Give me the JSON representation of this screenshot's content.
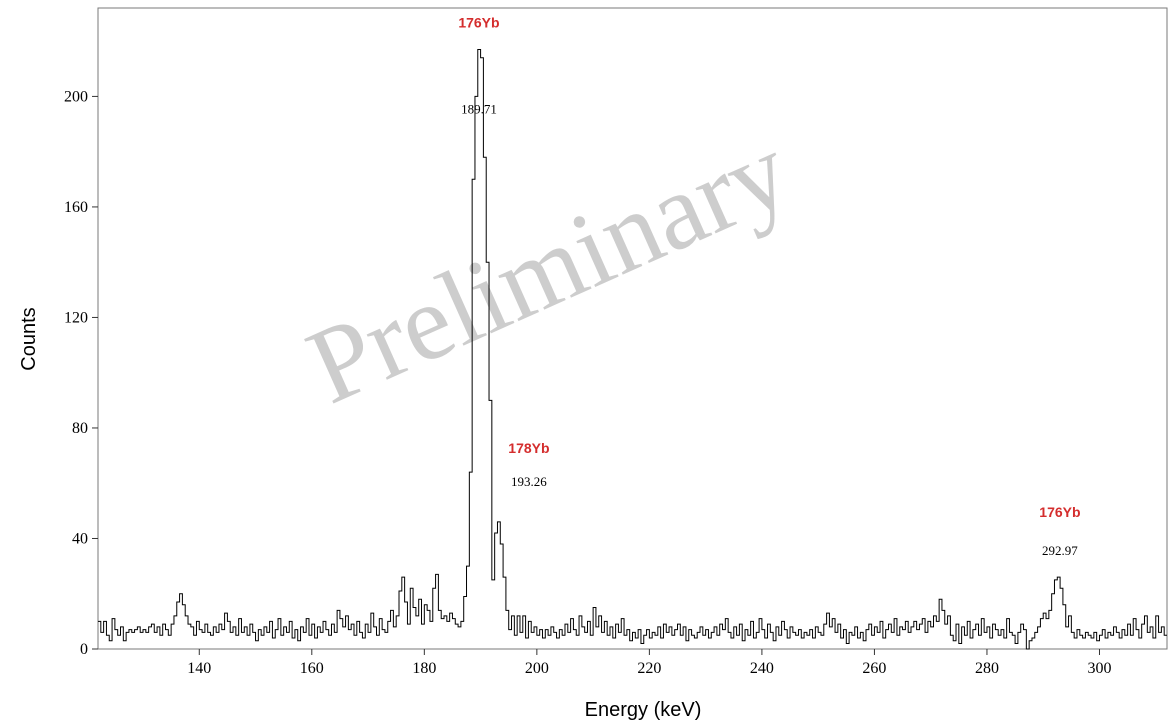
{
  "chart_data": {
    "type": "step-line",
    "title": "",
    "xlabel": "Energy (keV)",
    "ylabel": "Counts",
    "xlim": [
      122,
      312
    ],
    "ylim": [
      0,
      232
    ],
    "x_ticks": [
      140,
      160,
      180,
      200,
      220,
      240,
      260,
      280,
      300
    ],
    "y_ticks": [
      0,
      40,
      80,
      120,
      160,
      200
    ],
    "grid": false,
    "bin_width_keV": 0.5,
    "spectrum": [
      [
        122,
        10
      ],
      [
        122.5,
        6
      ],
      [
        123,
        10
      ],
      [
        123.5,
        5
      ],
      [
        124,
        3
      ],
      [
        124.5,
        11
      ],
      [
        125,
        7
      ],
      [
        125.5,
        5
      ],
      [
        126,
        8
      ],
      [
        126.5,
        3
      ],
      [
        127,
        6
      ],
      [
        127.5,
        7
      ],
      [
        128,
        6
      ],
      [
        128.5,
        7
      ],
      [
        129,
        8
      ],
      [
        129.5,
        6
      ],
      [
        130,
        7
      ],
      [
        130.5,
        6
      ],
      [
        131,
        8
      ],
      [
        131.5,
        9
      ],
      [
        132,
        6
      ],
      [
        132.5,
        8
      ],
      [
        133,
        5
      ],
      [
        133.5,
        9
      ],
      [
        134,
        7
      ],
      [
        134.5,
        5
      ],
      [
        135,
        9
      ],
      [
        135.5,
        12
      ],
      [
        136,
        17
      ],
      [
        136.5,
        20
      ],
      [
        137,
        16
      ],
      [
        137.5,
        12
      ],
      [
        138,
        9
      ],
      [
        138.5,
        8
      ],
      [
        139,
        5
      ],
      [
        139.5,
        10
      ],
      [
        140,
        7
      ],
      [
        140.5,
        6
      ],
      [
        141,
        9
      ],
      [
        141.5,
        6
      ],
      [
        142,
        5
      ],
      [
        142.5,
        8
      ],
      [
        143,
        6
      ],
      [
        143.5,
        9
      ],
      [
        144,
        7
      ],
      [
        144.5,
        13
      ],
      [
        145,
        10
      ],
      [
        145.5,
        6
      ],
      [
        146,
        8
      ],
      [
        146.5,
        5
      ],
      [
        147,
        11
      ],
      [
        147.5,
        6
      ],
      [
        148,
        8
      ],
      [
        148.5,
        5
      ],
      [
        149,
        9
      ],
      [
        149.5,
        6
      ],
      [
        150,
        3
      ],
      [
        150.5,
        7
      ],
      [
        151,
        5
      ],
      [
        151.5,
        8
      ],
      [
        152,
        6
      ],
      [
        152.5,
        10
      ],
      [
        153,
        4
      ],
      [
        153.5,
        7
      ],
      [
        154,
        11
      ],
      [
        154.5,
        5
      ],
      [
        155,
        8
      ],
      [
        155.5,
        6
      ],
      [
        156,
        10
      ],
      [
        156.5,
        4
      ],
      [
        157,
        7
      ],
      [
        157.5,
        3
      ],
      [
        158,
        8
      ],
      [
        158.5,
        6
      ],
      [
        159,
        11
      ],
      [
        159.5,
        5
      ],
      [
        160,
        9
      ],
      [
        160.5,
        4
      ],
      [
        161,
        8
      ],
      [
        161.5,
        6
      ],
      [
        162,
        10
      ],
      [
        162.5,
        7
      ],
      [
        163,
        5
      ],
      [
        163.5,
        9
      ],
      [
        164,
        6
      ],
      [
        164.5,
        14
      ],
      [
        165,
        11
      ],
      [
        165.5,
        8
      ],
      [
        166,
        12
      ],
      [
        166.5,
        7
      ],
      [
        167,
        9
      ],
      [
        167.5,
        5
      ],
      [
        168,
        10
      ],
      [
        168.5,
        6
      ],
      [
        169,
        4
      ],
      [
        169.5,
        9
      ],
      [
        170,
        6
      ],
      [
        170.5,
        13
      ],
      [
        171,
        8
      ],
      [
        171.5,
        5
      ],
      [
        172,
        11
      ],
      [
        172.5,
        7
      ],
      [
        173,
        6
      ],
      [
        173.5,
        10
      ],
      [
        174,
        14
      ],
      [
        174.5,
        8
      ],
      [
        175,
        12
      ],
      [
        175.5,
        21
      ],
      [
        176,
        26
      ],
      [
        176.5,
        17
      ],
      [
        177,
        9
      ],
      [
        177.5,
        22
      ],
      [
        178,
        15
      ],
      [
        178.5,
        12
      ],
      [
        179,
        18
      ],
      [
        179.5,
        9
      ],
      [
        180,
        16
      ],
      [
        180.5,
        14
      ],
      [
        181,
        10
      ],
      [
        181.5,
        22
      ],
      [
        182,
        27
      ],
      [
        182.5,
        14
      ],
      [
        183,
        11
      ],
      [
        183.5,
        12
      ],
      [
        184,
        10
      ],
      [
        184.5,
        13
      ],
      [
        185,
        11
      ],
      [
        185.5,
        9
      ],
      [
        186,
        8
      ],
      [
        186.5,
        10
      ],
      [
        187,
        19
      ],
      [
        187.5,
        30
      ],
      [
        188,
        64
      ],
      [
        188.5,
        170
      ],
      [
        189,
        200
      ],
      [
        189.5,
        217
      ],
      [
        190,
        214
      ],
      [
        190.5,
        178
      ],
      [
        191,
        140
      ],
      [
        191.5,
        90
      ],
      [
        192,
        25
      ],
      [
        192.5,
        42
      ],
      [
        193,
        46
      ],
      [
        193.5,
        38
      ],
      [
        194,
        26
      ],
      [
        194.5,
        14
      ],
      [
        195,
        7
      ],
      [
        195.5,
        12
      ],
      [
        196,
        5
      ],
      [
        196.5,
        12
      ],
      [
        197,
        6
      ],
      [
        197.5,
        12
      ],
      [
        198,
        4
      ],
      [
        198.5,
        10
      ],
      [
        199,
        6
      ],
      [
        199.5,
        8
      ],
      [
        200,
        5
      ],
      [
        200.5,
        7
      ],
      [
        201,
        4
      ],
      [
        201.5,
        7
      ],
      [
        202,
        5
      ],
      [
        202.5,
        8
      ],
      [
        203,
        6
      ],
      [
        203.5,
        4
      ],
      [
        204,
        7
      ],
      [
        204.5,
        5
      ],
      [
        205,
        9
      ],
      [
        205.5,
        6
      ],
      [
        206,
        11
      ],
      [
        206.5,
        7
      ],
      [
        207,
        5
      ],
      [
        207.5,
        12
      ],
      [
        208,
        8
      ],
      [
        208.5,
        6
      ],
      [
        209,
        10
      ],
      [
        209.5,
        5
      ],
      [
        210,
        15
      ],
      [
        210.5,
        8
      ],
      [
        211,
        12
      ],
      [
        211.5,
        6
      ],
      [
        212,
        10
      ],
      [
        212.5,
        5
      ],
      [
        213,
        8
      ],
      [
        213.5,
        4
      ],
      [
        214,
        9
      ],
      [
        214.5,
        6
      ],
      [
        215,
        11
      ],
      [
        215.5,
        5
      ],
      [
        216,
        7
      ],
      [
        216.5,
        3
      ],
      [
        217,
        6
      ],
      [
        217.5,
        4
      ],
      [
        218,
        7
      ],
      [
        218.5,
        2
      ],
      [
        219,
        5
      ],
      [
        219.5,
        7
      ],
      [
        220,
        4
      ],
      [
        220.5,
        6
      ],
      [
        221,
        5
      ],
      [
        221.5,
        8
      ],
      [
        222,
        4
      ],
      [
        222.5,
        9
      ],
      [
        223,
        6
      ],
      [
        223.5,
        8
      ],
      [
        224,
        5
      ],
      [
        224.5,
        7
      ],
      [
        225,
        9
      ],
      [
        225.5,
        5
      ],
      [
        226,
        8
      ],
      [
        226.5,
        3
      ],
      [
        227,
        7
      ],
      [
        227.5,
        5
      ],
      [
        228,
        4
      ],
      [
        228.5,
        6
      ],
      [
        229,
        8
      ],
      [
        229.5,
        5
      ],
      [
        230,
        7
      ],
      [
        230.5,
        4
      ],
      [
        231,
        6
      ],
      [
        231.5,
        8
      ],
      [
        232,
        5
      ],
      [
        232.5,
        9
      ],
      [
        233,
        7
      ],
      [
        233.5,
        11
      ],
      [
        234,
        6
      ],
      [
        234.5,
        4
      ],
      [
        235,
        8
      ],
      [
        235.5,
        5
      ],
      [
        236,
        9
      ],
      [
        236.5,
        3
      ],
      [
        237,
        7
      ],
      [
        237.5,
        5
      ],
      [
        238,
        10
      ],
      [
        238.5,
        4
      ],
      [
        239,
        6
      ],
      [
        239.5,
        11
      ],
      [
        240,
        7
      ],
      [
        240.5,
        4
      ],
      [
        241,
        9
      ],
      [
        241.5,
        6
      ],
      [
        242,
        3
      ],
      [
        242.5,
        8
      ],
      [
        243,
        5
      ],
      [
        243.5,
        10
      ],
      [
        244,
        7
      ],
      [
        244.5,
        4
      ],
      [
        245,
        8
      ],
      [
        245.5,
        6
      ],
      [
        246,
        5
      ],
      [
        246.5,
        7
      ],
      [
        247,
        4
      ],
      [
        247.5,
        6
      ],
      [
        248,
        5
      ],
      [
        248.5,
        7
      ],
      [
        249,
        4
      ],
      [
        249.5,
        8
      ],
      [
        250,
        6
      ],
      [
        250.5,
        5
      ],
      [
        251,
        9
      ],
      [
        251.5,
        13
      ],
      [
        252,
        8
      ],
      [
        252.5,
        11
      ],
      [
        253,
        6
      ],
      [
        253.5,
        9
      ],
      [
        254,
        4
      ],
      [
        254.5,
        7
      ],
      [
        255,
        2
      ],
      [
        255.5,
        6
      ],
      [
        256,
        5
      ],
      [
        256.5,
        8
      ],
      [
        257,
        4
      ],
      [
        257.5,
        6
      ],
      [
        258,
        3
      ],
      [
        258.5,
        7
      ],
      [
        259,
        9
      ],
      [
        259.5,
        5
      ],
      [
        260,
        8
      ],
      [
        260.5,
        6
      ],
      [
        261,
        10
      ],
      [
        261.5,
        4
      ],
      [
        262,
        7
      ],
      [
        262.5,
        9
      ],
      [
        263,
        6
      ],
      [
        263.5,
        11
      ],
      [
        264,
        5
      ],
      [
        264.5,
        8
      ],
      [
        265,
        7
      ],
      [
        265.5,
        10
      ],
      [
        266,
        6
      ],
      [
        266.5,
        8
      ],
      [
        267,
        10
      ],
      [
        267.5,
        7
      ],
      [
        268,
        9
      ],
      [
        268.5,
        11
      ],
      [
        269,
        6
      ],
      [
        269.5,
        10
      ],
      [
        270,
        8
      ],
      [
        270.5,
        12
      ],
      [
        271,
        10
      ],
      [
        271.5,
        18
      ],
      [
        272,
        14
      ],
      [
        272.5,
        9
      ],
      [
        273,
        12
      ],
      [
        273.5,
        5
      ],
      [
        274,
        3
      ],
      [
        274.5,
        9
      ],
      [
        275,
        2
      ],
      [
        275.5,
        8
      ],
      [
        276,
        5
      ],
      [
        276.5,
        10
      ],
      [
        277,
        4
      ],
      [
        277.5,
        7
      ],
      [
        278,
        9
      ],
      [
        278.5,
        5
      ],
      [
        279,
        11
      ],
      [
        279.5,
        6
      ],
      [
        280,
        8
      ],
      [
        280.5,
        4
      ],
      [
        281,
        9
      ],
      [
        281.5,
        7
      ],
      [
        282,
        5
      ],
      [
        282.5,
        7
      ],
      [
        283,
        4
      ],
      [
        283.5,
        11
      ],
      [
        284,
        6
      ],
      [
        284.5,
        5
      ],
      [
        285,
        2
      ],
      [
        285.5,
        6
      ],
      [
        286,
        9
      ],
      [
        286.5,
        7
      ],
      [
        287,
        0
      ],
      [
        287.5,
        3
      ],
      [
        288,
        4
      ],
      [
        288.5,
        6
      ],
      [
        289,
        8
      ],
      [
        289.5,
        11
      ],
      [
        290,
        13
      ],
      [
        290.5,
        11
      ],
      [
        291,
        14
      ],
      [
        291.5,
        20
      ],
      [
        292,
        25
      ],
      [
        292.5,
        26
      ],
      [
        293,
        22
      ],
      [
        293.5,
        16
      ],
      [
        294,
        8
      ],
      [
        294.5,
        12
      ],
      [
        295,
        6
      ],
      [
        295.5,
        4
      ],
      [
        296,
        7
      ],
      [
        296.5,
        5
      ],
      [
        297,
        4
      ],
      [
        297.5,
        6
      ],
      [
        298,
        5
      ],
      [
        298.5,
        4
      ],
      [
        299,
        6
      ],
      [
        299.5,
        3
      ],
      [
        300,
        5
      ],
      [
        300.5,
        7
      ],
      [
        301,
        4
      ],
      [
        301.5,
        6
      ],
      [
        302,
        5
      ],
      [
        302.5,
        8
      ],
      [
        303,
        6
      ],
      [
        303.5,
        4
      ],
      [
        304,
        7
      ],
      [
        304.5,
        5
      ],
      [
        305,
        9
      ],
      [
        305.5,
        5
      ],
      [
        306,
        11
      ],
      [
        306.5,
        7
      ],
      [
        307,
        4
      ],
      [
        307.5,
        9
      ],
      [
        308,
        12
      ],
      [
        308.5,
        6
      ],
      [
        309,
        8
      ],
      [
        309.5,
        4
      ],
      [
        310,
        12
      ],
      [
        310.5,
        6
      ],
      [
        311,
        8
      ],
      [
        311.5,
        5
      ]
    ],
    "peaks": [
      {
        "isotope": "176Yb",
        "energy_label": "189.71",
        "energy": 189.71,
        "counts": 217
      },
      {
        "isotope": "178Yb",
        "energy_label": "193.26",
        "energy": 193.26,
        "counts": 46
      },
      {
        "isotope": "176Yb",
        "energy_label": "292.97",
        "energy": 292.97,
        "counts": 26
      }
    ],
    "watermark": "Preliminary",
    "line_color": "#000000",
    "annotation_color": "#d42d2d",
    "watermark_color": "#bdbdbd"
  }
}
